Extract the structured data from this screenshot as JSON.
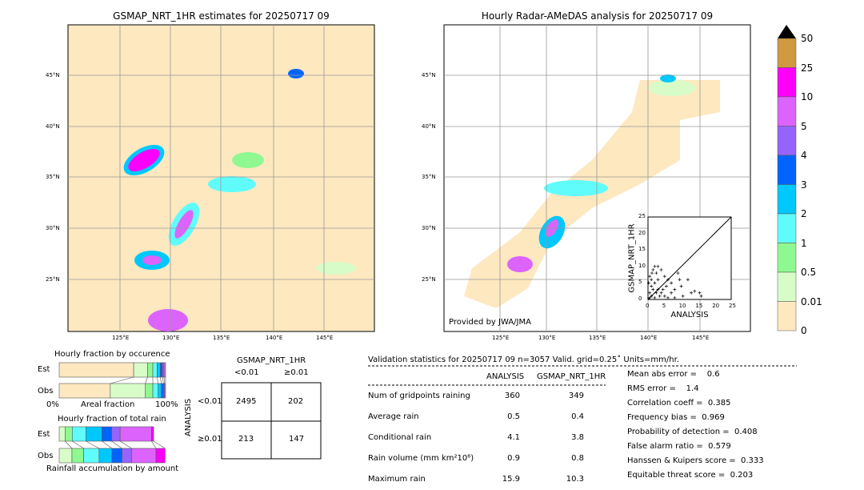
{
  "left_map": {
    "title": "GSMAP_NRT_1HR estimates for 20250717 09",
    "lon_ticks": [
      "125°E",
      "130°E",
      "135°E",
      "140°E",
      "145°E"
    ],
    "lat_ticks": [
      "45°N",
      "40°N",
      "35°N",
      "30°N",
      "25°N"
    ]
  },
  "right_map": {
    "title": "Hourly Radar-AMeDAS analysis for 20250717 09",
    "lon_ticks": [
      "125°E",
      "130°E",
      "135°E",
      "140°E",
      "145°E"
    ],
    "lat_ticks": [
      "45°N",
      "40°N",
      "35°N",
      "30°N",
      "25°N"
    ],
    "credit": "Provided by JWA/JMA"
  },
  "colorbar": {
    "labels": [
      "50",
      "25",
      "10",
      "5",
      "4",
      "3",
      "2",
      "1",
      "0.5",
      "0.01",
      "0"
    ],
    "colors": [
      "#d09a40",
      "#fc00fc",
      "#dc64fc",
      "#9664fc",
      "#0064fc",
      "#00c8fc",
      "#60fcfc",
      "#90f890",
      "#d8fcc8",
      "#fde8c0"
    ],
    "extend_color": "#000000"
  },
  "chart_data": [
    {
      "type": "scatter",
      "xlabel": "ANALYSIS",
      "ylabel": "GSMAP_NRT_1HR",
      "xlim": [
        0,
        25
      ],
      "ylim": [
        0,
        25
      ],
      "ticks": [
        "0",
        "5",
        "10",
        "15",
        "20",
        "25"
      ],
      "points": [
        [
          0.5,
          7
        ],
        [
          1,
          6
        ],
        [
          1.5,
          9
        ],
        [
          2,
          10
        ],
        [
          2.5,
          8
        ],
        [
          3,
          10
        ],
        [
          1,
          4
        ],
        [
          2,
          5
        ],
        [
          3,
          3
        ],
        [
          4,
          2
        ],
        [
          5,
          1
        ],
        [
          6,
          0.5
        ],
        [
          7,
          2
        ],
        [
          8,
          3
        ],
        [
          9,
          8
        ],
        [
          9.5,
          6
        ],
        [
          10,
          4
        ],
        [
          12,
          6
        ],
        [
          13,
          2
        ],
        [
          14,
          2.5
        ],
        [
          15.5,
          2
        ],
        [
          16,
          1
        ],
        [
          5,
          7
        ],
        [
          6,
          6
        ],
        [
          7,
          5
        ],
        [
          4,
          9
        ],
        [
          3,
          6
        ],
        [
          0.5,
          2
        ],
        [
          1,
          1
        ],
        [
          2,
          0.5
        ],
        [
          0.3,
          0.3
        ],
        [
          1.5,
          3
        ],
        [
          2.5,
          2
        ],
        [
          3.5,
          1
        ],
        [
          4.5,
          3
        ],
        [
          5.5,
          4
        ],
        [
          8,
          0.5
        ],
        [
          10.5,
          1
        ],
        [
          0.2,
          5
        ],
        [
          1.2,
          8
        ]
      ]
    },
    {
      "type": "bar",
      "title": "Hourly fraction by occurence",
      "categories": [
        "Est",
        "Obs"
      ],
      "xlabel": "Areal fraction",
      "xticks": [
        "0%",
        "100%"
      ],
      "series": [
        {
          "values": [
            0.7,
            0.48
          ]
        },
        {
          "values": [
            0.13,
            0.33
          ]
        },
        {
          "values": [
            0.05,
            0.07
          ]
        },
        {
          "values": [
            0.04,
            0.05
          ]
        },
        {
          "values": [
            0.03,
            0.03
          ]
        },
        {
          "values": [
            0.02,
            0.02
          ]
        },
        {
          "values": [
            0.015,
            0.01
          ]
        },
        {
          "values": [
            0.015,
            0.01
          ]
        }
      ]
    },
    {
      "type": "bar",
      "title": "Hourly fraction of total rain",
      "categories": [
        "Est",
        "Obs"
      ],
      "xlabel": "Rainfall accumulation by amount",
      "series": [
        {
          "values": [
            0.055,
            0.12
          ]
        },
        {
          "values": [
            0.0675,
            0.11
          ]
        },
        {
          "values": [
            0.13,
            0.145
          ]
        },
        {
          "values": [
            0.15,
            0.12
          ]
        },
        {
          "values": [
            0.09,
            0.095
          ]
        },
        {
          "values": [
            0.08,
            0.09
          ]
        },
        {
          "values": [
            0.295,
            0.23
          ]
        },
        {
          "values": [
            0.02,
            0.085
          ]
        }
      ]
    }
  ],
  "contingency": {
    "title": "GSMAP_NRT_1HR",
    "col_labels": [
      "<0.01",
      "≥0.01"
    ],
    "row_title": "ANALYSIS",
    "row_labels": [
      "<0.01",
      "≥0.01"
    ],
    "cells": [
      [
        "2495",
        "202"
      ],
      [
        "213",
        "147"
      ]
    ]
  },
  "stats": {
    "header": "Validation statistics for 20250717 09  n=3057 Valid. grid=0.25˚ Units=mm/hr.",
    "columns": [
      "ANALYSIS",
      "GSMAP_NRT_1HR"
    ],
    "rows": [
      {
        "label": "Num of gridpoints raining",
        "a": "360",
        "g": "349"
      },
      {
        "label": "Average rain",
        "a": "0.5",
        "g": "0.4"
      },
      {
        "label": "Conditional rain",
        "a": "4.1",
        "g": "3.8"
      },
      {
        "label": "Rain volume (mm km²10⁶)",
        "a": "0.9",
        "g": "0.8"
      },
      {
        "label": "Maximum rain",
        "a": "15.9",
        "g": "10.3"
      }
    ],
    "scores": [
      "Mean abs error =    0.6",
      "RMS error =    1.4",
      "Correlation coeff =  0.385",
      "Frequency bias =  0.969",
      "Probability of detection =  0.408",
      "False alarm ratio =  0.579",
      "Hanssen & Kuipers score =  0.333",
      "Equitable threat score =  0.203"
    ]
  }
}
